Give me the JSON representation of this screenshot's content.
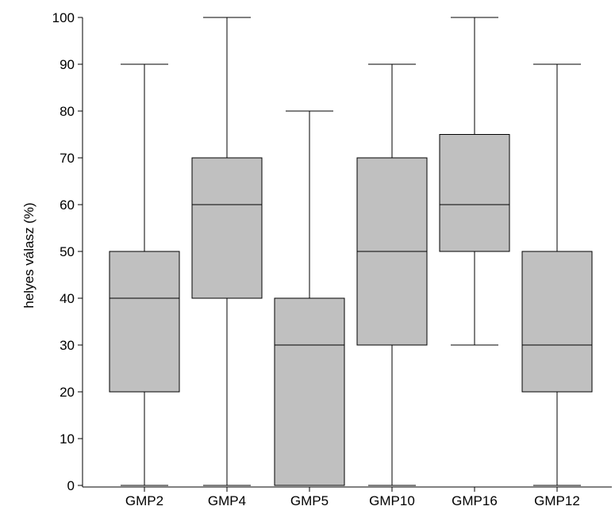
{
  "chart_data": {
    "type": "boxplot",
    "ylabel": "helyes válasz (%)",
    "xlabel": "",
    "title": "",
    "ylim": [
      0,
      100
    ],
    "yticks": [
      0,
      10,
      20,
      30,
      40,
      50,
      60,
      70,
      80,
      90,
      100
    ],
    "categories": [
      "GMP2",
      "GMP4",
      "GMP5",
      "GMP10",
      "GMP16",
      "GMP12"
    ],
    "boxes": [
      {
        "category": "GMP2",
        "min": 0,
        "q1": 20,
        "median": 40,
        "q3": 50,
        "max": 90
      },
      {
        "category": "GMP4",
        "min": 0,
        "q1": 40,
        "median": 60,
        "q3": 70,
        "max": 100
      },
      {
        "category": "GMP5",
        "min": 0,
        "q1": 0,
        "median": 30,
        "q3": 40,
        "max": 80
      },
      {
        "category": "GMP10",
        "min": 0,
        "q1": 30,
        "median": 50,
        "q3": 70,
        "max": 90
      },
      {
        "category": "GMP16",
        "min": 30,
        "q1": 50,
        "median": 60,
        "q3": 75,
        "max": 100
      },
      {
        "category": "GMP12",
        "min": 0,
        "q1": 20,
        "median": 30,
        "q3": 50,
        "max": 90
      }
    ],
    "box_color": "#c0c0c0",
    "line_color": "#000000",
    "grid": false,
    "legend": "none"
  }
}
